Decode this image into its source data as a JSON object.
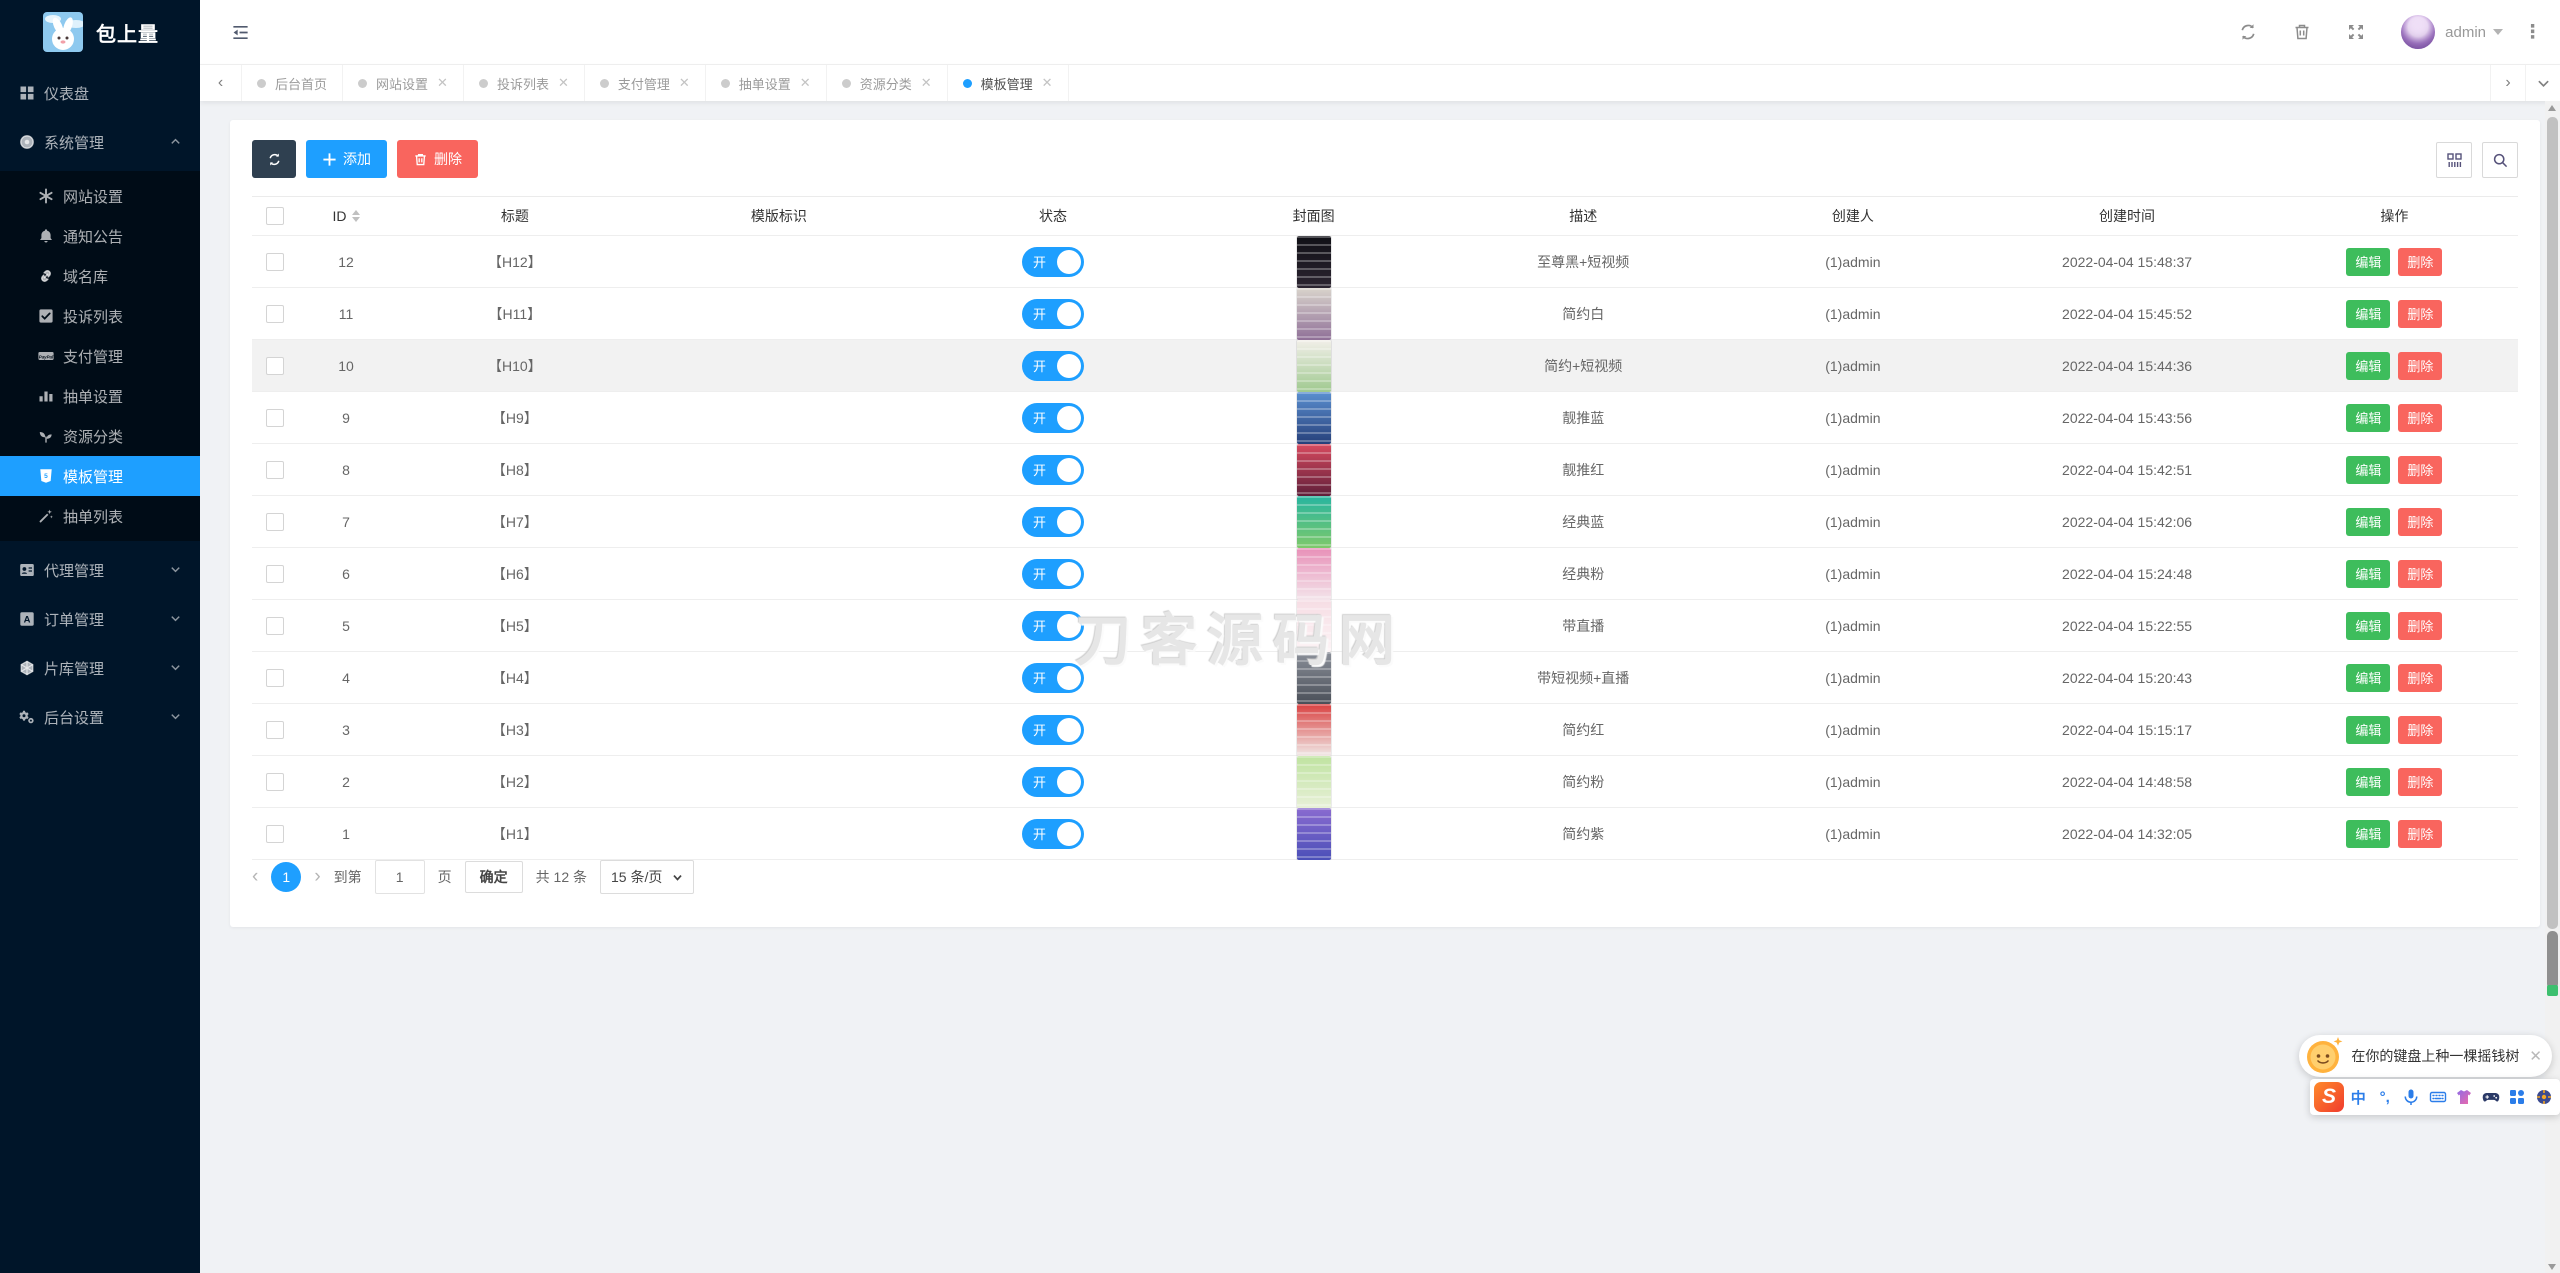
{
  "app": {
    "title": "包上量"
  },
  "colors": {
    "accent": "#1E9FFF",
    "sidebar_bg": "#001529",
    "submenu_bg": "#000c17",
    "content_bg": "#f0f2f5",
    "refresh_button": "#2F4050",
    "add_button": "#1E9FFF",
    "delete_button": "#F9655E",
    "edit_button": "#3EBD5C",
    "toggle_on": "#1E9FFF"
  },
  "header": {
    "username": "admin"
  },
  "sidebar": {
    "items": [
      {
        "key": "dashboard",
        "icon": "dashboard-icon",
        "label": "仪表盘",
        "type": "item"
      },
      {
        "key": "system-management",
        "icon": "system-icon",
        "label": "系统管理",
        "type": "group",
        "expanded": true,
        "children": [
          {
            "key": "site-settings",
            "icon": "site-settings-icon",
            "label": "网站设置"
          },
          {
            "key": "notice",
            "icon": "bell-icon",
            "label": "通知公告"
          },
          {
            "key": "domain-library",
            "icon": "link-icon",
            "label": "域名库"
          },
          {
            "key": "complaint-list",
            "icon": "check-square-icon",
            "label": "投诉列表"
          },
          {
            "key": "payment-management",
            "icon": "paypal-icon",
            "label": "支付管理"
          },
          {
            "key": "draw-settings",
            "icon": "bars-icon",
            "label": "抽单设置"
          },
          {
            "key": "resource-category",
            "icon": "seedling-icon",
            "label": "资源分类"
          },
          {
            "key": "template-management",
            "icon": "html5-icon",
            "label": "模板管理",
            "active": true
          },
          {
            "key": "draw-list",
            "icon": "wand-icon",
            "label": "抽单列表"
          }
        ]
      },
      {
        "key": "agent-management",
        "icon": "id-card-icon",
        "label": "代理管理",
        "type": "group",
        "expanded": false
      },
      {
        "key": "order-management",
        "icon": "order-icon",
        "label": "订单管理",
        "type": "group",
        "expanded": false
      },
      {
        "key": "film-library",
        "icon": "hexagon-icon",
        "label": "片库管理",
        "type": "group",
        "expanded": false
      },
      {
        "key": "backend-settings",
        "icon": "gears-icon",
        "label": "后台设置",
        "type": "group",
        "expanded": false
      }
    ]
  },
  "tabs": [
    {
      "key": "home",
      "label": "后台首页",
      "closable": false,
      "active": false
    },
    {
      "key": "site-settings",
      "label": "网站设置",
      "closable": true,
      "active": false
    },
    {
      "key": "complaint-list",
      "label": "投诉列表",
      "closable": true,
      "active": false
    },
    {
      "key": "payment-management",
      "label": "支付管理",
      "closable": true,
      "active": false
    },
    {
      "key": "draw-settings",
      "label": "抽单设置",
      "closable": true,
      "active": false
    },
    {
      "key": "resource-category",
      "label": "资源分类",
      "closable": true,
      "active": false
    },
    {
      "key": "template-management",
      "label": "模板管理",
      "closable": true,
      "active": true
    }
  ],
  "toolbar": {
    "add_label": "添加",
    "delete_label": "删除"
  },
  "table": {
    "headers": [
      "ID",
      "标题",
      "模版标识",
      "状态",
      "封面图",
      "描述",
      "创建人",
      "创建时间",
      "操作"
    ],
    "status_on_label": "开",
    "edit_label": "编辑",
    "delete_label": "删除",
    "rows": [
      {
        "id": "12",
        "title": "【H12】",
        "identifier": "",
        "status": true,
        "desc": "至尊黑+短视频",
        "creator": "(1)admin",
        "created": "2022-04-04 15:48:37",
        "cover": [
          "#101016",
          "#2b2430"
        ],
        "highlighted": false
      },
      {
        "id": "11",
        "title": "【H11】",
        "identifier": "",
        "status": true,
        "desc": "简约白",
        "creator": "(1)admin",
        "created": "2022-04-04 15:45:52",
        "cover": [
          "#d9d4cc",
          "#8f6f97"
        ],
        "highlighted": false
      },
      {
        "id": "10",
        "title": "【H10】",
        "identifier": "",
        "status": true,
        "desc": "简约+短视频",
        "creator": "(1)admin",
        "created": "2022-04-04 15:44:36",
        "cover": [
          "#f2efe9",
          "#9fc98f"
        ],
        "highlighted": true
      },
      {
        "id": "9",
        "title": "【H9】",
        "identifier": "",
        "status": true,
        "desc": "靓推蓝",
        "creator": "(1)admin",
        "created": "2022-04-04 15:43:56",
        "cover": [
          "#5a8fd0",
          "#27407a"
        ],
        "highlighted": false
      },
      {
        "id": "8",
        "title": "【H8】",
        "identifier": "",
        "status": true,
        "desc": "靓推红",
        "creator": "(1)admin",
        "created": "2022-04-04 15:42:51",
        "cover": [
          "#d84a5f",
          "#5f1f3a"
        ],
        "highlighted": false
      },
      {
        "id": "7",
        "title": "【H7】",
        "identifier": "",
        "status": true,
        "desc": "经典蓝",
        "creator": "(1)admin",
        "created": "2022-04-04 15:42:06",
        "cover": [
          "#27b5a0",
          "#7ec96a"
        ],
        "highlighted": false
      },
      {
        "id": "6",
        "title": "【H6】",
        "identifier": "",
        "status": true,
        "desc": "经典粉",
        "creator": "(1)admin",
        "created": "2022-04-04 15:24:48",
        "cover": [
          "#e890b8",
          "#f3e4ea"
        ],
        "highlighted": false
      },
      {
        "id": "5",
        "title": "【H5】",
        "identifier": "",
        "status": true,
        "desc": "带直播",
        "creator": "(1)admin",
        "created": "2022-04-04 15:22:55",
        "cover": [
          "#f6dde4",
          "#fdf4f6"
        ],
        "highlighted": false
      },
      {
        "id": "4",
        "title": "【H4】",
        "identifier": "",
        "status": true,
        "desc": "带短视频+直播",
        "creator": "(1)admin",
        "created": "2022-04-04 15:20:43",
        "cover": [
          "#8a8f99",
          "#4a4f58"
        ],
        "highlighted": false
      },
      {
        "id": "3",
        "title": "【H3】",
        "identifier": "",
        "status": true,
        "desc": "简约红",
        "creator": "(1)admin",
        "created": "2022-04-04 15:15:17",
        "cover": [
          "#d94040",
          "#f0e8e6"
        ],
        "highlighted": false
      },
      {
        "id": "2",
        "title": "【H2】",
        "identifier": "",
        "status": true,
        "desc": "简约粉",
        "creator": "(1)admin",
        "created": "2022-04-04 14:48:58",
        "cover": [
          "#bfe3a0",
          "#e8f0d8"
        ],
        "highlighted": false
      },
      {
        "id": "1",
        "title": "【H1】",
        "identifier": "",
        "status": true,
        "desc": "简约紫",
        "creator": "(1)admin",
        "created": "2022-04-04 14:32:05",
        "cover": [
          "#8a6bd0",
          "#4a4fb8"
        ],
        "highlighted": false
      }
    ]
  },
  "pagination": {
    "current_page": "1",
    "goto_label": "到第",
    "page_input": "1",
    "page_unit": "页",
    "confirm_label": "确定",
    "total_label": "共 12 条",
    "per_page_label": "15 条/页"
  },
  "watermark": {
    "text": "刀客源码网"
  },
  "ime": {
    "tip": "在你的键盘上种一棵摇钱树",
    "logo": "S",
    "mode_label": "中",
    "icons": [
      "sogou-logo-icon",
      "chinese-mode-icon",
      "punctuation-icon",
      "microphone-icon",
      "keyboard-icon",
      "skin-icon",
      "gamepad-icon",
      "apps-grid-icon",
      "toolbox-icon"
    ]
  }
}
